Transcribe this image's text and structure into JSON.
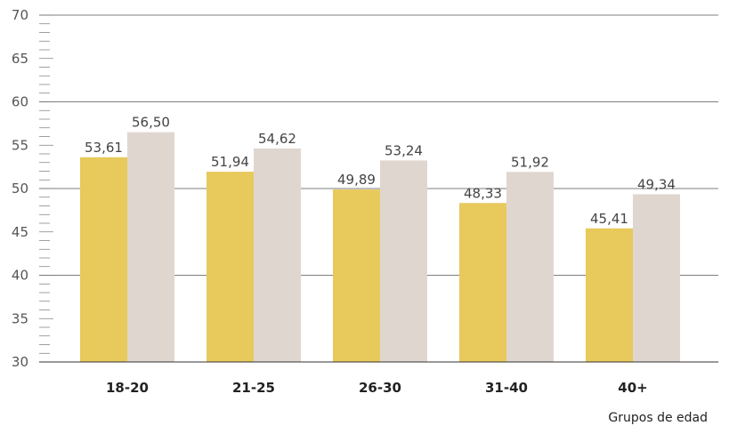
{
  "chart_data": {
    "type": "bar",
    "categories": [
      "18-20",
      "21-25",
      "26-30",
      "31-40",
      "40+"
    ],
    "series": [
      {
        "values": [
          53.61,
          51.94,
          49.89,
          48.33,
          45.41
        ],
        "color": "#e8c95c"
      },
      {
        "values": [
          56.5,
          54.62,
          53.24,
          51.92,
          49.34
        ],
        "color": "#e0d6d0"
      }
    ],
    "data_labels": [
      [
        "53,61",
        "51,94",
        "49,89",
        "48,33",
        "45,41"
      ],
      [
        "56,50",
        "54,62",
        "53,24",
        "51,92",
        "49,34"
      ]
    ],
    "ylim": [
      30,
      70
    ],
    "yticks": [
      30,
      35,
      40,
      45,
      50,
      55,
      60,
      65,
      70
    ],
    "gridlines": [
      40,
      50,
      60,
      70
    ],
    "xlabel": "Grupos de edad",
    "ylabel": "",
    "title": "",
    "legend": "none"
  }
}
